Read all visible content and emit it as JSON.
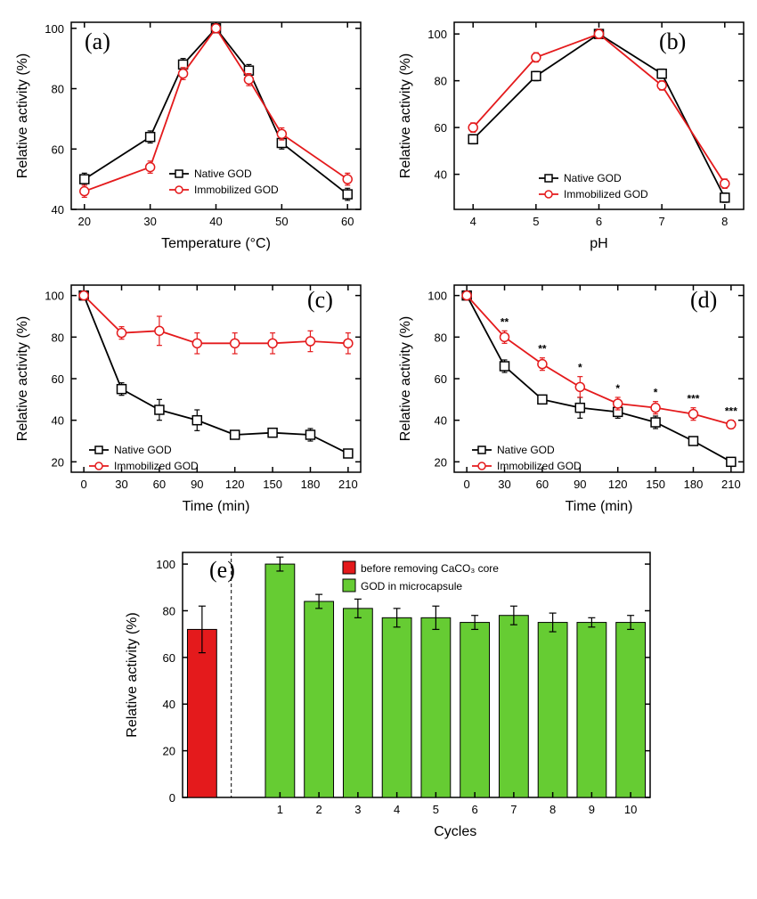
{
  "colors": {
    "native": "#000000",
    "immobilized": "#e41a1c",
    "bar_red": "#e41a1c",
    "bar_green": "#66cc33",
    "axis": "#000000",
    "text": "#000000"
  },
  "panel_a": {
    "label": "(a)",
    "xlabel": "Temperature (°C)",
    "ylabel": "Relative activity (%)",
    "xlim": [
      18,
      62
    ],
    "ylim": [
      40,
      102
    ],
    "xticks": [
      20,
      30,
      40,
      50,
      60
    ],
    "yticks": [
      40,
      60,
      80,
      100
    ],
    "series": [
      {
        "name": "Native GOD",
        "marker": "square",
        "color": "#000000",
        "x": [
          20,
          30,
          35,
          40,
          45,
          50,
          60
        ],
        "y": [
          50,
          64,
          88,
          100,
          86,
          62,
          45
        ],
        "err": [
          2,
          2,
          2,
          1,
          2,
          2,
          2
        ]
      },
      {
        "name": "Immobilized GOD",
        "marker": "circle",
        "color": "#e41a1c",
        "x": [
          20,
          30,
          35,
          40,
          45,
          50,
          60
        ],
        "y": [
          46,
          54,
          85,
          100,
          83,
          65,
          50
        ],
        "err": [
          2,
          2,
          2,
          1,
          2,
          2,
          2
        ]
      }
    ],
    "legend": [
      "Native GOD",
      "Immobilized GOD"
    ]
  },
  "panel_b": {
    "label": "(b)",
    "xlabel": "pH",
    "ylabel": "Relative activity (%)",
    "xlim": [
      3.7,
      8.3
    ],
    "ylim": [
      25,
      105
    ],
    "xticks": [
      4,
      5,
      6,
      7,
      8
    ],
    "yticks": [
      40,
      60,
      80,
      100
    ],
    "series": [
      {
        "name": "Native GOD",
        "marker": "square",
        "color": "#000000",
        "x": [
          4,
          5,
          6,
          7,
          8
        ],
        "y": [
          55,
          82,
          100,
          83,
          30
        ],
        "err": [
          2,
          2,
          2,
          2,
          2
        ]
      },
      {
        "name": "Immobilized GOD",
        "marker": "circle",
        "color": "#e41a1c",
        "x": [
          4,
          5,
          6,
          7,
          8
        ],
        "y": [
          60,
          90,
          100,
          78,
          36
        ],
        "err": [
          2,
          2,
          2,
          2,
          2
        ]
      }
    ],
    "legend": [
      "Native GOD",
      "Immobilized GOD"
    ]
  },
  "panel_c": {
    "label": "(c)",
    "xlabel": "Time (min)",
    "ylabel": "Relative activity (%)",
    "xlim": [
      -10,
      220
    ],
    "ylim": [
      15,
      105
    ],
    "xticks": [
      0,
      30,
      60,
      90,
      120,
      150,
      180,
      210
    ],
    "yticks": [
      20,
      40,
      60,
      80,
      100
    ],
    "series": [
      {
        "name": "Native GOD",
        "marker": "square",
        "color": "#000000",
        "x": [
          0,
          30,
          60,
          90,
          120,
          150,
          180,
          210
        ],
        "y": [
          100,
          55,
          45,
          40,
          33,
          34,
          33,
          24
        ],
        "err": [
          1,
          3,
          5,
          5,
          2,
          2,
          3,
          2
        ]
      },
      {
        "name": "Immobilized GOD",
        "marker": "circle",
        "color": "#e41a1c",
        "x": [
          0,
          30,
          60,
          90,
          120,
          150,
          180,
          210
        ],
        "y": [
          100,
          82,
          83,
          77,
          77,
          77,
          78,
          77
        ],
        "err": [
          1,
          3,
          7,
          5,
          5,
          5,
          5,
          5
        ]
      }
    ],
    "legend": [
      "Native GOD",
      "Immobilized GOD"
    ]
  },
  "panel_d": {
    "label": "(d)",
    "xlabel": "Time (min)",
    "ylabel": "Relative activity (%)",
    "xlim": [
      -10,
      220
    ],
    "ylim": [
      15,
      105
    ],
    "xticks": [
      0,
      30,
      60,
      90,
      120,
      150,
      180,
      210
    ],
    "yticks": [
      20,
      40,
      60,
      80,
      100
    ],
    "series": [
      {
        "name": "Native GOD",
        "marker": "square",
        "color": "#000000",
        "x": [
          0,
          30,
          60,
          90,
          120,
          150,
          180,
          210
        ],
        "y": [
          100,
          66,
          50,
          46,
          44,
          39,
          30,
          20
        ],
        "err": [
          1,
          3,
          2,
          5,
          3,
          3,
          2,
          2
        ]
      },
      {
        "name": "Immobilized GOD",
        "marker": "circle",
        "color": "#e41a1c",
        "x": [
          0,
          30,
          60,
          90,
          120,
          150,
          180,
          210
        ],
        "y": [
          100,
          80,
          67,
          56,
          48,
          46,
          43,
          38
        ],
        "err": [
          1,
          3,
          3,
          5,
          3,
          3,
          3,
          2
        ]
      }
    ],
    "sig": [
      {
        "x": 30,
        "t": "**"
      },
      {
        "x": 60,
        "t": "**"
      },
      {
        "x": 90,
        "t": "*"
      },
      {
        "x": 120,
        "t": "*"
      },
      {
        "x": 150,
        "t": "*"
      },
      {
        "x": 180,
        "t": "***"
      },
      {
        "x": 210,
        "t": "***"
      }
    ],
    "legend": [
      "Native GOD",
      "Immobilized GOD"
    ]
  },
  "panel_e": {
    "label": "(e)",
    "xlabel": "Cycles",
    "ylabel": "Relative activity (%)",
    "ylim": [
      0,
      105
    ],
    "yticks": [
      0,
      20,
      40,
      60,
      80,
      100
    ],
    "legend": [
      "before removing CaCO₃ core",
      "GOD in microcapsule"
    ],
    "bar_before": {
      "value": 72,
      "err": 10,
      "color": "#e41a1c"
    },
    "bars": [
      {
        "x": 1,
        "y": 100,
        "err": 3
      },
      {
        "x": 2,
        "y": 84,
        "err": 3
      },
      {
        "x": 3,
        "y": 81,
        "err": 4
      },
      {
        "x": 4,
        "y": 77,
        "err": 4
      },
      {
        "x": 5,
        "y": 77,
        "err": 5
      },
      {
        "x": 6,
        "y": 75,
        "err": 3
      },
      {
        "x": 7,
        "y": 78,
        "err": 4
      },
      {
        "x": 8,
        "y": 75,
        "err": 4
      },
      {
        "x": 9,
        "y": 75,
        "err": 2
      },
      {
        "x": 10,
        "y": 75,
        "err": 3
      }
    ],
    "bar_color": "#66cc33"
  },
  "style": {
    "axis_stroke_width": 1.5,
    "line_stroke_width": 1.8,
    "marker_size": 5,
    "label_fontsize": 16,
    "tick_fontsize": 13,
    "panel_label_fontsize": 26,
    "legend_fontsize": 12
  }
}
